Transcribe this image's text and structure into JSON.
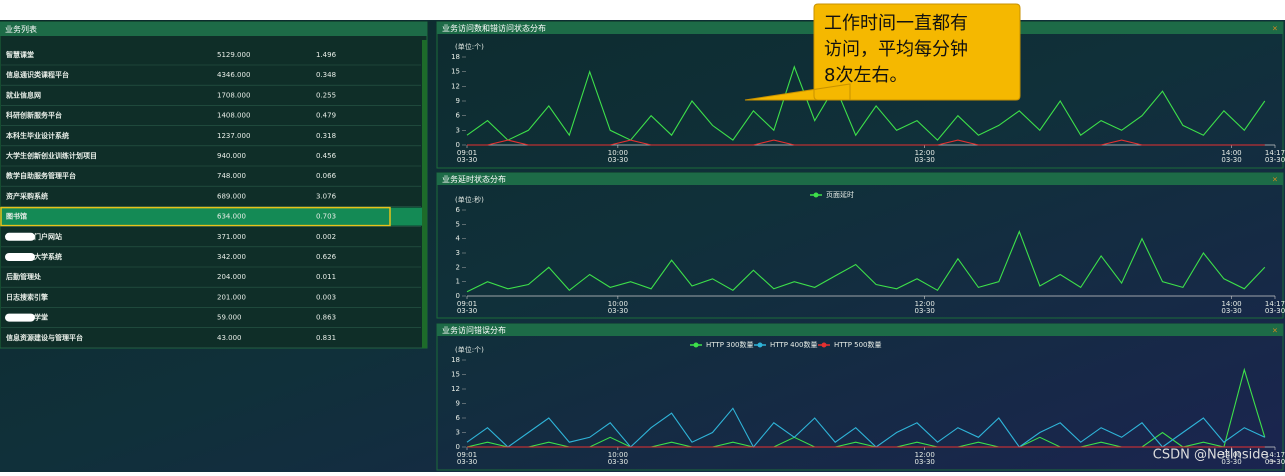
{
  "table": {
    "title": "业务列表",
    "rows": [
      [
        "智慧课堂",
        "5129.000",
        "1.496"
      ],
      [
        "信息通识类课程平台",
        "4346.000",
        "0.348"
      ],
      [
        "就业信息网",
        "1708.000",
        "0.255"
      ],
      [
        "科研创新服务平台",
        "1408.000",
        "0.479"
      ],
      [
        "本科生毕业设计系统",
        "1237.000",
        "0.318"
      ],
      [
        "大学生创新创业训练计划项目",
        "940.000",
        "0.456"
      ],
      [
        "教学自助服务管理平台",
        "748.000",
        "0.066"
      ],
      [
        "资产采购系统",
        "689.000",
        "3.076"
      ],
      [
        "图书馆",
        "634.000",
        "0.703"
      ],
      [
        "门户网站",
        "371.000",
        "0.002"
      ],
      [
        "大学系统",
        "342.000",
        "0.626"
      ],
      [
        "后勤管理处",
        "204.000",
        "0.011"
      ],
      [
        "日志搜索引擎",
        "201.000",
        "0.003"
      ],
      [
        "学堂",
        "59.000",
        "0.863"
      ],
      [
        "信息资源建设与管理平台",
        "43.000",
        "0.831"
      ]
    ]
  },
  "chart_data": [
    {
      "type": "line",
      "title": "业务访问数和错访问状态分布",
      "y_label": "(单位:个)",
      "x": [
        541,
        549,
        557,
        565,
        573,
        581,
        589,
        597,
        605,
        613,
        621,
        629,
        637,
        645,
        653,
        661,
        669,
        677,
        685,
        693,
        701,
        709,
        717,
        725,
        733,
        741,
        749,
        757,
        765,
        773,
        781,
        789,
        797,
        805,
        813,
        821,
        829,
        837,
        845,
        853
      ],
      "xlim": [
        541,
        857
      ],
      "xticks": [
        {
          "value": 541,
          "label": "09:01",
          "date": "03-30"
        },
        {
          "value": 600,
          "label": "10:00",
          "date": "03-30"
        },
        {
          "value": 720,
          "label": "12:00",
          "date": "03-30"
        },
        {
          "value": 840,
          "label": "14:00",
          "date": "03-30"
        },
        {
          "value": 857,
          "label": "14:17",
          "date": "03-30"
        }
      ],
      "ylim": [
        0,
        18
      ],
      "yticks": [
        0,
        3,
        6,
        9,
        12,
        15,
        18
      ],
      "series": [
        {
          "color": "#3de04a",
          "values": [
            2,
            5,
            1,
            3,
            8,
            2,
            15,
            3,
            1,
            6,
            2,
            9,
            4,
            1,
            7,
            3,
            16,
            5,
            12,
            2,
            8,
            3,
            5,
            1,
            6,
            2,
            4,
            7,
            3,
            9,
            2,
            5,
            3,
            6,
            11,
            4,
            2,
            7,
            3,
            9
          ]
        },
        {
          "color": "#e53030",
          "values": [
            0,
            0,
            1,
            0,
            0,
            0,
            0,
            0,
            1,
            0,
            0,
            0,
            0,
            0,
            0,
            1,
            0,
            0,
            0,
            0,
            0,
            0,
            0,
            0,
            1,
            0,
            0,
            0,
            0,
            0,
            0,
            0,
            1,
            0,
            0,
            0,
            0,
            0,
            0,
            0
          ]
        }
      ]
    },
    {
      "type": "line",
      "title": "业务延时状态分布",
      "y_label": "(单位:秒)",
      "x": [
        541,
        549,
        557,
        565,
        573,
        581,
        589,
        597,
        605,
        613,
        621,
        629,
        637,
        645,
        653,
        661,
        669,
        677,
        685,
        693,
        701,
        709,
        717,
        725,
        733,
        741,
        749,
        757,
        765,
        773,
        781,
        789,
        797,
        805,
        813,
        821,
        829,
        837,
        845,
        853
      ],
      "xlim": [
        541,
        857
      ],
      "xticks": [
        {
          "value": 541,
          "label": "09:01",
          "date": "03-30"
        },
        {
          "value": 600,
          "label": "10:00",
          "date": "03-30"
        },
        {
          "value": 720,
          "label": "12:00",
          "date": "03-30"
        },
        {
          "value": 840,
          "label": "14:00",
          "date": "03-30"
        },
        {
          "value": 857,
          "label": "14:17",
          "date": "03-30"
        }
      ],
      "ylim": [
        0,
        6
      ],
      "yticks": [
        0,
        1,
        2,
        3,
        4,
        5,
        6
      ],
      "series": [
        {
          "name": "页面延时",
          "color": "#3de04a",
          "values": [
            0.3,
            1,
            0.5,
            0.8,
            2,
            0.4,
            1.5,
            0.6,
            1,
            0.5,
            2.5,
            0.7,
            1.2,
            0.4,
            1.8,
            0.5,
            1,
            0.6,
            1.4,
            2.2,
            0.8,
            0.5,
            1.2,
            0.4,
            2.6,
            0.6,
            1,
            4.5,
            0.7,
            1.5,
            0.6,
            2.8,
            0.9,
            4,
            1,
            0.6,
            3,
            1.2,
            0.5,
            2
          ]
        }
      ]
    },
    {
      "type": "line",
      "title": "业务访问错误分布",
      "y_label": "(单位:个)",
      "x": [
        541,
        549,
        557,
        565,
        573,
        581,
        589,
        597,
        605,
        613,
        621,
        629,
        637,
        645,
        653,
        661,
        669,
        677,
        685,
        693,
        701,
        709,
        717,
        725,
        733,
        741,
        749,
        757,
        765,
        773,
        781,
        789,
        797,
        805,
        813,
        821,
        829,
        837,
        845,
        853
      ],
      "xlim": [
        541,
        857
      ],
      "xticks": [
        {
          "value": 541,
          "label": "09:01",
          "date": "03-30"
        },
        {
          "value": 600,
          "label": "10:00",
          "date": "03-30"
        },
        {
          "value": 720,
          "label": "12:00",
          "date": "03-30"
        },
        {
          "value": 840,
          "label": "14:00",
          "date": "03-30"
        },
        {
          "value": 857,
          "label": "14:17",
          "date": "03-30"
        }
      ],
      "ylim": [
        0,
        18
      ],
      "yticks": [
        0,
        3,
        6,
        9,
        12,
        15,
        18
      ],
      "series": [
        {
          "name": "HTTP 300数量",
          "color": "#3de04a",
          "values": [
            0,
            1,
            0,
            0,
            1,
            0,
            0,
            2,
            0,
            0,
            1,
            0,
            0,
            1,
            0,
            0,
            2,
            0,
            0,
            1,
            0,
            0,
            1,
            0,
            0,
            1,
            0,
            0,
            2,
            0,
            0,
            1,
            0,
            0,
            3,
            0,
            1,
            0,
            16,
            2
          ]
        },
        {
          "name": "HTTP 400数量",
          "color": "#2fb4d8",
          "values": [
            1,
            4,
            0,
            3,
            6,
            1,
            2,
            5,
            0,
            4,
            7,
            1,
            3,
            8,
            0,
            5,
            2,
            6,
            1,
            4,
            0,
            3,
            5,
            1,
            4,
            2,
            6,
            0,
            3,
            5,
            1,
            4,
            2,
            5,
            0,
            3,
            6,
            1,
            4,
            2
          ]
        },
        {
          "name": "HTTP 500数量",
          "color": "#e53030",
          "values": [
            0,
            0,
            0,
            0,
            0,
            0,
            0,
            0,
            0,
            0,
            0,
            0,
            0,
            0,
            0,
            0,
            0,
            0,
            0,
            0,
            0,
            0,
            0,
            0,
            0,
            0,
            0,
            0,
            0,
            0,
            0,
            0,
            0,
            0,
            0,
            0,
            0,
            0,
            0,
            0
          ]
        }
      ]
    }
  ],
  "callout": {
    "lines": [
      "工作时间一直都有",
      "访问，平均每分钟",
      "8次左右。"
    ]
  },
  "watermark": "CSDN @NetInside_"
}
